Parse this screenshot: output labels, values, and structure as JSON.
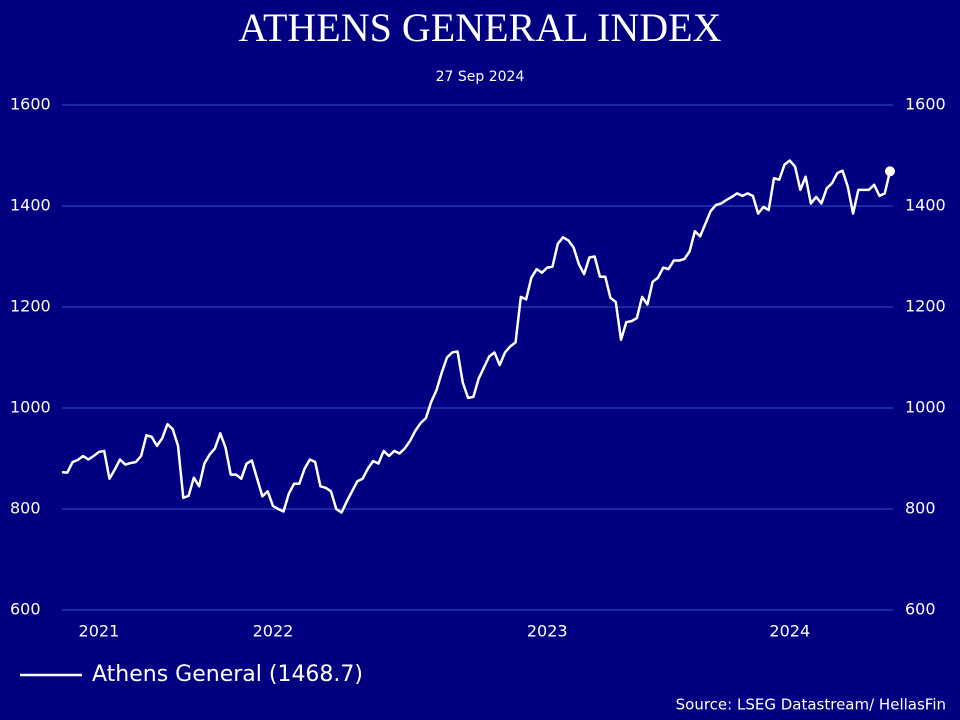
{
  "chart_data": {
    "type": "line",
    "title": "ATHENS GENERAL INDEX",
    "subtitle": "27 Sep 2024",
    "source": "Source: LSEG Datastream/ HellasFin",
    "categories": [
      null,
      null,
      null,
      null,
      null,
      null,
      null,
      "2021",
      null,
      null,
      null,
      null,
      null,
      null,
      null,
      null,
      null,
      null,
      null,
      null,
      null,
      null,
      null,
      null,
      null,
      null,
      null,
      null,
      null,
      null,
      null,
      null,
      null,
      null,
      null,
      null,
      null,
      null,
      null,
      null,
      "2022",
      null,
      null,
      null,
      null,
      null,
      null,
      null,
      null,
      null,
      null,
      null,
      null,
      null,
      null,
      null,
      null,
      null,
      null,
      null,
      null,
      null,
      null,
      null,
      null,
      null,
      null,
      null,
      null,
      null,
      null,
      null,
      null,
      null,
      null,
      null,
      null,
      null,
      null,
      null,
      null,
      null,
      null,
      null,
      null,
      null,
      null,
      null,
      null,
      null,
      null,
      null,
      "2023",
      null,
      null,
      null,
      null,
      null,
      null,
      null,
      null,
      null,
      null,
      null,
      null,
      null,
      null,
      null,
      null,
      null,
      null,
      null,
      null,
      null,
      null,
      null,
      null,
      null,
      null,
      null,
      null,
      null,
      null,
      null,
      null,
      null,
      null,
      null,
      null,
      null,
      null,
      null,
      null,
      null,
      null,
      null,
      null,
      null,
      "2024",
      null,
      null,
      null,
      null,
      null,
      null,
      null,
      null,
      null,
      null,
      null,
      null,
      null,
      null,
      null,
      null,
      null,
      null,
      null
    ],
    "series": [
      {
        "name": "Athens General (1468.7)",
        "color": "#ffffff",
        "values": [
          873,
          872,
          893,
          897,
          905,
          898,
          905,
          913,
          915,
          860,
          878,
          898,
          888,
          891,
          893,
          905,
          946,
          943,
          925,
          940,
          968,
          958,
          925,
          822,
          826,
          862,
          845,
          890,
          908,
          920,
          950,
          922,
          868,
          868,
          860,
          890,
          896,
          860,
          825,
          835,
          806,
          800,
          795,
          830,
          850,
          850,
          880,
          898,
          893,
          845,
          842,
          835,
          800,
          793,
          815,
          835,
          855,
          860,
          880,
          895,
          890,
          915,
          905,
          915,
          910,
          920,
          935,
          955,
          970,
          980,
          1012,
          1035,
          1070,
          1100,
          1110,
          1112,
          1050,
          1020,
          1022,
          1058,
          1080,
          1102,
          1110,
          1085,
          1110,
          1122,
          1130,
          1220,
          1215,
          1258,
          1275,
          1268,
          1278,
          1280,
          1325,
          1338,
          1332,
          1318,
          1285,
          1265,
          1298,
          1300,
          1260,
          1260,
          1218,
          1210,
          1135,
          1170,
          1172,
          1178,
          1220,
          1205,
          1250,
          1258,
          1278,
          1275,
          1292,
          1292,
          1295,
          1310,
          1350,
          1340,
          1365,
          1390,
          1402,
          1405,
          1412,
          1418,
          1425,
          1420,
          1425,
          1420,
          1385,
          1398,
          1392,
          1455,
          1452,
          1482,
          1490,
          1478,
          1432,
          1458,
          1405,
          1418,
          1405,
          1435,
          1445,
          1465,
          1470,
          1438,
          1385,
          1432,
          1432,
          1432,
          1442,
          1420,
          1425,
          1468.7
        ]
      }
    ],
    "ylim": [
      600,
      1600
    ],
    "yticks": [
      600,
      800,
      1000,
      1200,
      1400,
      1600
    ],
    "grid": true,
    "grid_color": "#2f4fd0",
    "background": "#000080",
    "legend": "bottom-left"
  }
}
